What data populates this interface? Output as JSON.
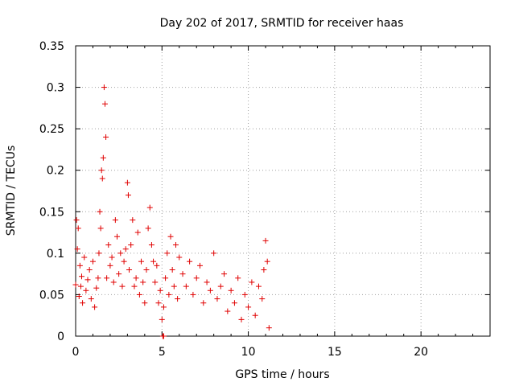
{
  "chart_data": {
    "type": "scatter",
    "title": "Day 202 of 2017, SRMTID for receiver haas",
    "xlabel": "GPS time / hours",
    "ylabel": "SRMTID / TECUs",
    "xlim": [
      0,
      24
    ],
    "ylim": [
      0,
      0.35
    ],
    "xticks": [
      "0",
      "5",
      "10",
      "15",
      "20"
    ],
    "yticks": [
      "0",
      "0.05",
      "0.1",
      "0.15",
      "0.2",
      "0.25",
      "0.3",
      "0.35"
    ],
    "grid": true,
    "marker": "+",
    "color": "#e00000",
    "series": [
      {
        "name": "SRMTID",
        "x": [
          0.0,
          0.05,
          0.1,
          0.15,
          0.2,
          0.25,
          0.3,
          0.35,
          0.4,
          0.5,
          0.6,
          0.7,
          0.8,
          0.9,
          1.0,
          1.1,
          1.2,
          1.3,
          1.35,
          1.4,
          1.45,
          1.5,
          1.55,
          1.6,
          1.65,
          1.7,
          1.75,
          1.8,
          1.9,
          2.0,
          2.1,
          2.2,
          2.3,
          2.4,
          2.5,
          2.6,
          2.7,
          2.8,
          2.9,
          3.0,
          3.05,
          3.1,
          3.2,
          3.3,
          3.4,
          3.5,
          3.6,
          3.7,
          3.8,
          3.9,
          4.0,
          4.1,
          4.2,
          4.3,
          4.4,
          4.5,
          4.6,
          4.7,
          4.8,
          4.9,
          5.0,
          5.1,
          5.2,
          5.3,
          5.4,
          5.5,
          5.6,
          5.7,
          5.8,
          5.9,
          6.0,
          6.2,
          6.4,
          6.6,
          6.8,
          7.0,
          7.2,
          7.4,
          7.6,
          7.8,
          8.0,
          8.2,
          8.4,
          8.6,
          8.8,
          9.0,
          9.2,
          9.4,
          9.6,
          9.8,
          10.0,
          10.2,
          10.4,
          10.6,
          10.8,
          10.9,
          11.0,
          11.1,
          11.2,
          5.05,
          5.1
        ],
        "y": [
          0.062,
          0.14,
          0.105,
          0.13,
          0.048,
          0.085,
          0.06,
          0.072,
          0.04,
          0.095,
          0.055,
          0.068,
          0.08,
          0.045,
          0.09,
          0.035,
          0.058,
          0.07,
          0.1,
          0.15,
          0.13,
          0.2,
          0.19,
          0.215,
          0.3,
          0.28,
          0.24,
          0.07,
          0.11,
          0.085,
          0.095,
          0.065,
          0.14,
          0.12,
          0.075,
          0.1,
          0.06,
          0.09,
          0.105,
          0.185,
          0.17,
          0.08,
          0.11,
          0.14,
          0.06,
          0.07,
          0.125,
          0.05,
          0.09,
          0.065,
          0.04,
          0.08,
          0.13,
          0.155,
          0.11,
          0.09,
          0.065,
          0.085,
          0.04,
          0.055,
          0.02,
          0.035,
          0.07,
          0.1,
          0.05,
          0.12,
          0.08,
          0.06,
          0.11,
          0.045,
          0.095,
          0.075,
          0.06,
          0.09,
          0.05,
          0.07,
          0.085,
          0.04,
          0.065,
          0.055,
          0.1,
          0.045,
          0.06,
          0.075,
          0.03,
          0.055,
          0.04,
          0.07,
          0.02,
          0.05,
          0.035,
          0.065,
          0.025,
          0.06,
          0.045,
          0.08,
          0.115,
          0.09,
          0.01,
          0.0,
          0.0
        ]
      }
    ]
  }
}
